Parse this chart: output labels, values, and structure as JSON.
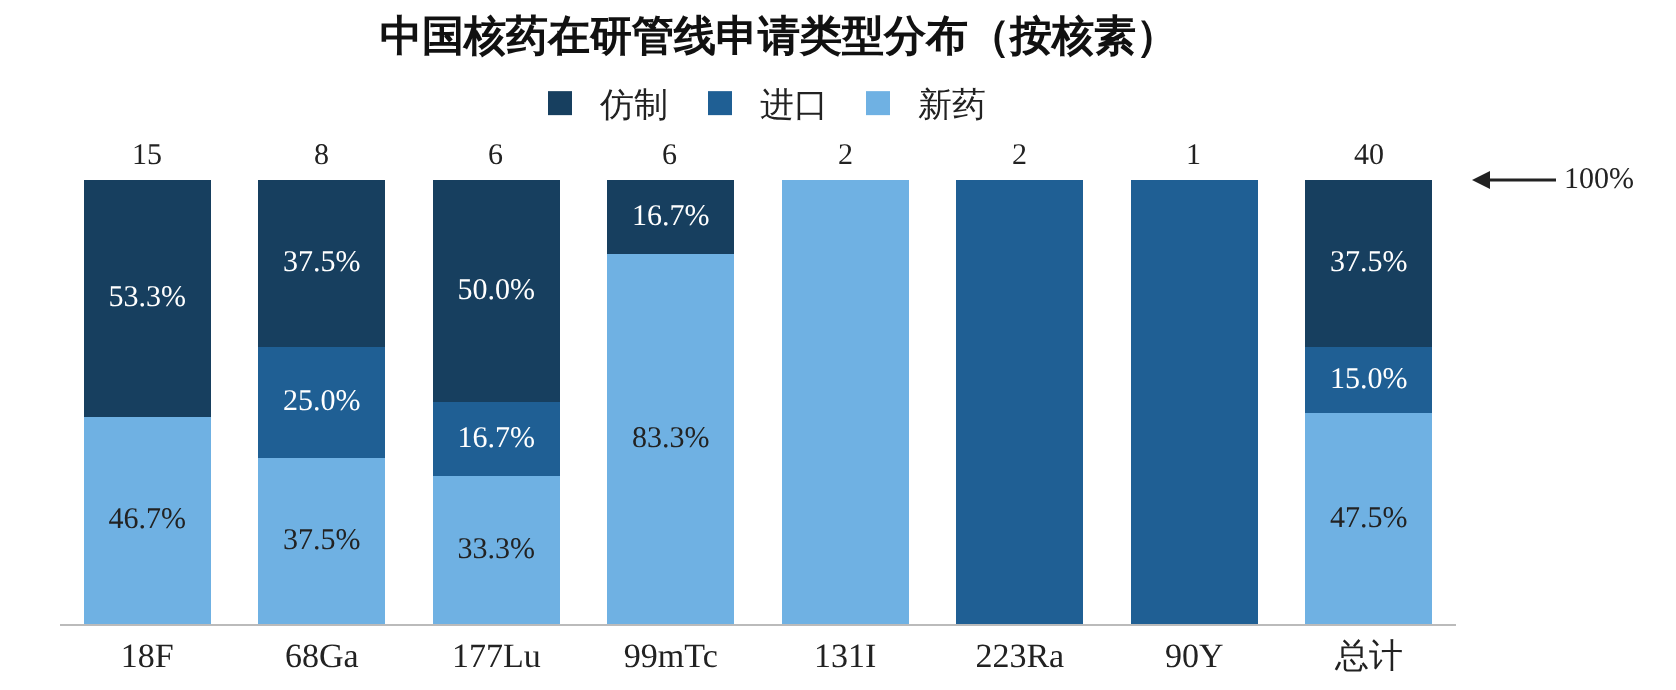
{
  "chart_data": {
    "type": "bar",
    "stacked": true,
    "title": "中国核药在研管线申请类型分布（按核素）",
    "categories": [
      "18F",
      "68Ga",
      "177Lu",
      "99mTc",
      "131I",
      "223Ra",
      "90Y",
      "总计"
    ],
    "series": [
      {
        "name": "新药",
        "color": "#6fb1e3",
        "values": [
          46.7,
          37.5,
          33.3,
          83.3,
          100,
          null,
          null,
          47.5
        ],
        "value_labels": [
          "46.7%",
          "37.5%",
          "33.3%",
          "83.3%",
          null,
          null,
          null,
          "47.5%"
        ]
      },
      {
        "name": "进口",
        "color": "#1f5f94",
        "values": [
          null,
          25.0,
          16.7,
          null,
          null,
          100,
          100,
          15.0
        ],
        "value_labels": [
          null,
          "25.0%",
          "16.7%",
          null,
          null,
          null,
          null,
          "15.0%"
        ]
      },
      {
        "name": "仿制",
        "color": "#173f5f",
        "values": [
          53.3,
          37.5,
          50.0,
          16.7,
          null,
          null,
          null,
          37.5
        ],
        "value_labels": [
          "53.3%",
          "37.5%",
          "50.0%",
          "16.7%",
          null,
          null,
          null,
          "37.5%"
        ]
      }
    ],
    "annotations": [
      {
        "text": "15",
        "x": "18F",
        "y": 100
      },
      {
        "text": "8",
        "x": "68Ga",
        "y": 100
      },
      {
        "text": "6",
        "x": "177Lu",
        "y": 100
      },
      {
        "text": "6",
        "x": "99mTc",
        "y": 100
      },
      {
        "text": "2",
        "x": "131I",
        "y": 100
      },
      {
        "text": "2",
        "x": "223Ra",
        "y": 100
      },
      {
        "text": "1",
        "x": "90Y",
        "y": 100
      },
      {
        "text": "40",
        "x": "总计",
        "y": 100
      },
      "100%"
    ],
    "ylim": [
      0,
      100
    ],
    "tick_labels": "x",
    "grid": false,
    "legend": "top"
  }
}
